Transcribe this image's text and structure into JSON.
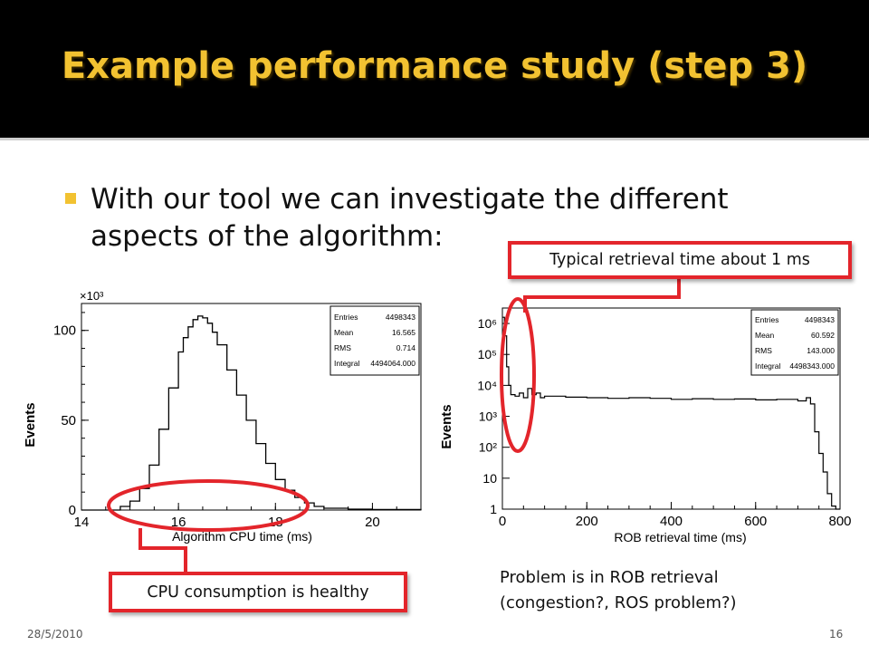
{
  "slide": {
    "title": "Example performance study (step 3)",
    "bullet": "With our tool we can investigate the different aspects of the algorithm:",
    "callout_rob": "Typical retrieval time about 1 ms",
    "callout_cpu": "CPU consumption is healthy",
    "problem_line1": "Problem is in ROB retrieval",
    "problem_line2": "(congestion?, ROS problem?)",
    "footer_date": "28/5/2010",
    "footer_page": "16",
    "colors": {
      "title": "#f2c231",
      "callout_border": "#e3252b",
      "bullet": "#f2c231"
    }
  },
  "chart_data": [
    {
      "type": "histogram",
      "xlabel": "Algorithm CPU time (ms)",
      "ylabel": "Events",
      "y_multiplier": "×10³",
      "xlim": [
        14,
        21
      ],
      "ylim": [
        0,
        115
      ],
      "xticks": [
        "14",
        "16",
        "18",
        "20"
      ],
      "yticks": [
        "0",
        "50",
        "100"
      ],
      "stats": [
        {
          "label": "Entries",
          "value": "4498343"
        },
        {
          "label": "Mean",
          "value": "16.565"
        },
        {
          "label": "RMS",
          "value": "0.714"
        },
        {
          "label": "Integral",
          "value": "4494064.000"
        }
      ],
      "x": [
        14.0,
        14.5,
        14.8,
        15.0,
        15.2,
        15.4,
        15.6,
        15.8,
        16.0,
        16.1,
        16.2,
        16.3,
        16.4,
        16.5,
        16.6,
        16.7,
        16.8,
        17.0,
        17.2,
        17.4,
        17.6,
        17.8,
        18.0,
        18.2,
        18.4,
        18.6,
        18.8,
        19.0,
        19.5,
        20.0,
        21.0
      ],
      "y": [
        0,
        0,
        2,
        5,
        12,
        25,
        45,
        68,
        88,
        96,
        102,
        106,
        108,
        107,
        104,
        99,
        92,
        78,
        64,
        50,
        37,
        26,
        17,
        11,
        7,
        4,
        2,
        1,
        0.5,
        0.3,
        0
      ]
    },
    {
      "type": "histogram",
      "xlabel": "ROB retrieval time (ms)",
      "ylabel": "Events",
      "log_y": true,
      "xlim": [
        0,
        800
      ],
      "ylim_exp": [
        0,
        6.5
      ],
      "xticks": [
        "0",
        "200",
        "400",
        "600",
        "800"
      ],
      "yticks": [
        "1",
        "10",
        "10²",
        "10³",
        "10⁴",
        "10⁵",
        "10⁶"
      ],
      "stats": [
        {
          "label": "Entries",
          "value": "4498343"
        },
        {
          "label": "Mean",
          "value": "60.592"
        },
        {
          "label": "RMS",
          "value": "143.000"
        },
        {
          "label": "Integral",
          "value": "4498343.000"
        }
      ],
      "x": [
        0,
        5,
        10,
        15,
        20,
        30,
        40,
        50,
        60,
        70,
        80,
        90,
        100,
        150,
        200,
        250,
        300,
        350,
        400,
        450,
        500,
        550,
        600,
        650,
        700,
        720,
        730,
        740,
        750,
        760,
        770,
        780,
        790,
        800
      ],
      "y_log10": [
        6.2,
        5.6,
        4.6,
        4.0,
        3.7,
        3.65,
        3.75,
        3.6,
        3.9,
        3.7,
        3.75,
        3.6,
        3.65,
        3.62,
        3.6,
        3.58,
        3.6,
        3.58,
        3.55,
        3.57,
        3.55,
        3.56,
        3.53,
        3.55,
        3.5,
        3.6,
        3.4,
        2.5,
        1.8,
        1.2,
        0.5,
        0.1,
        0,
        0
      ]
    }
  ]
}
